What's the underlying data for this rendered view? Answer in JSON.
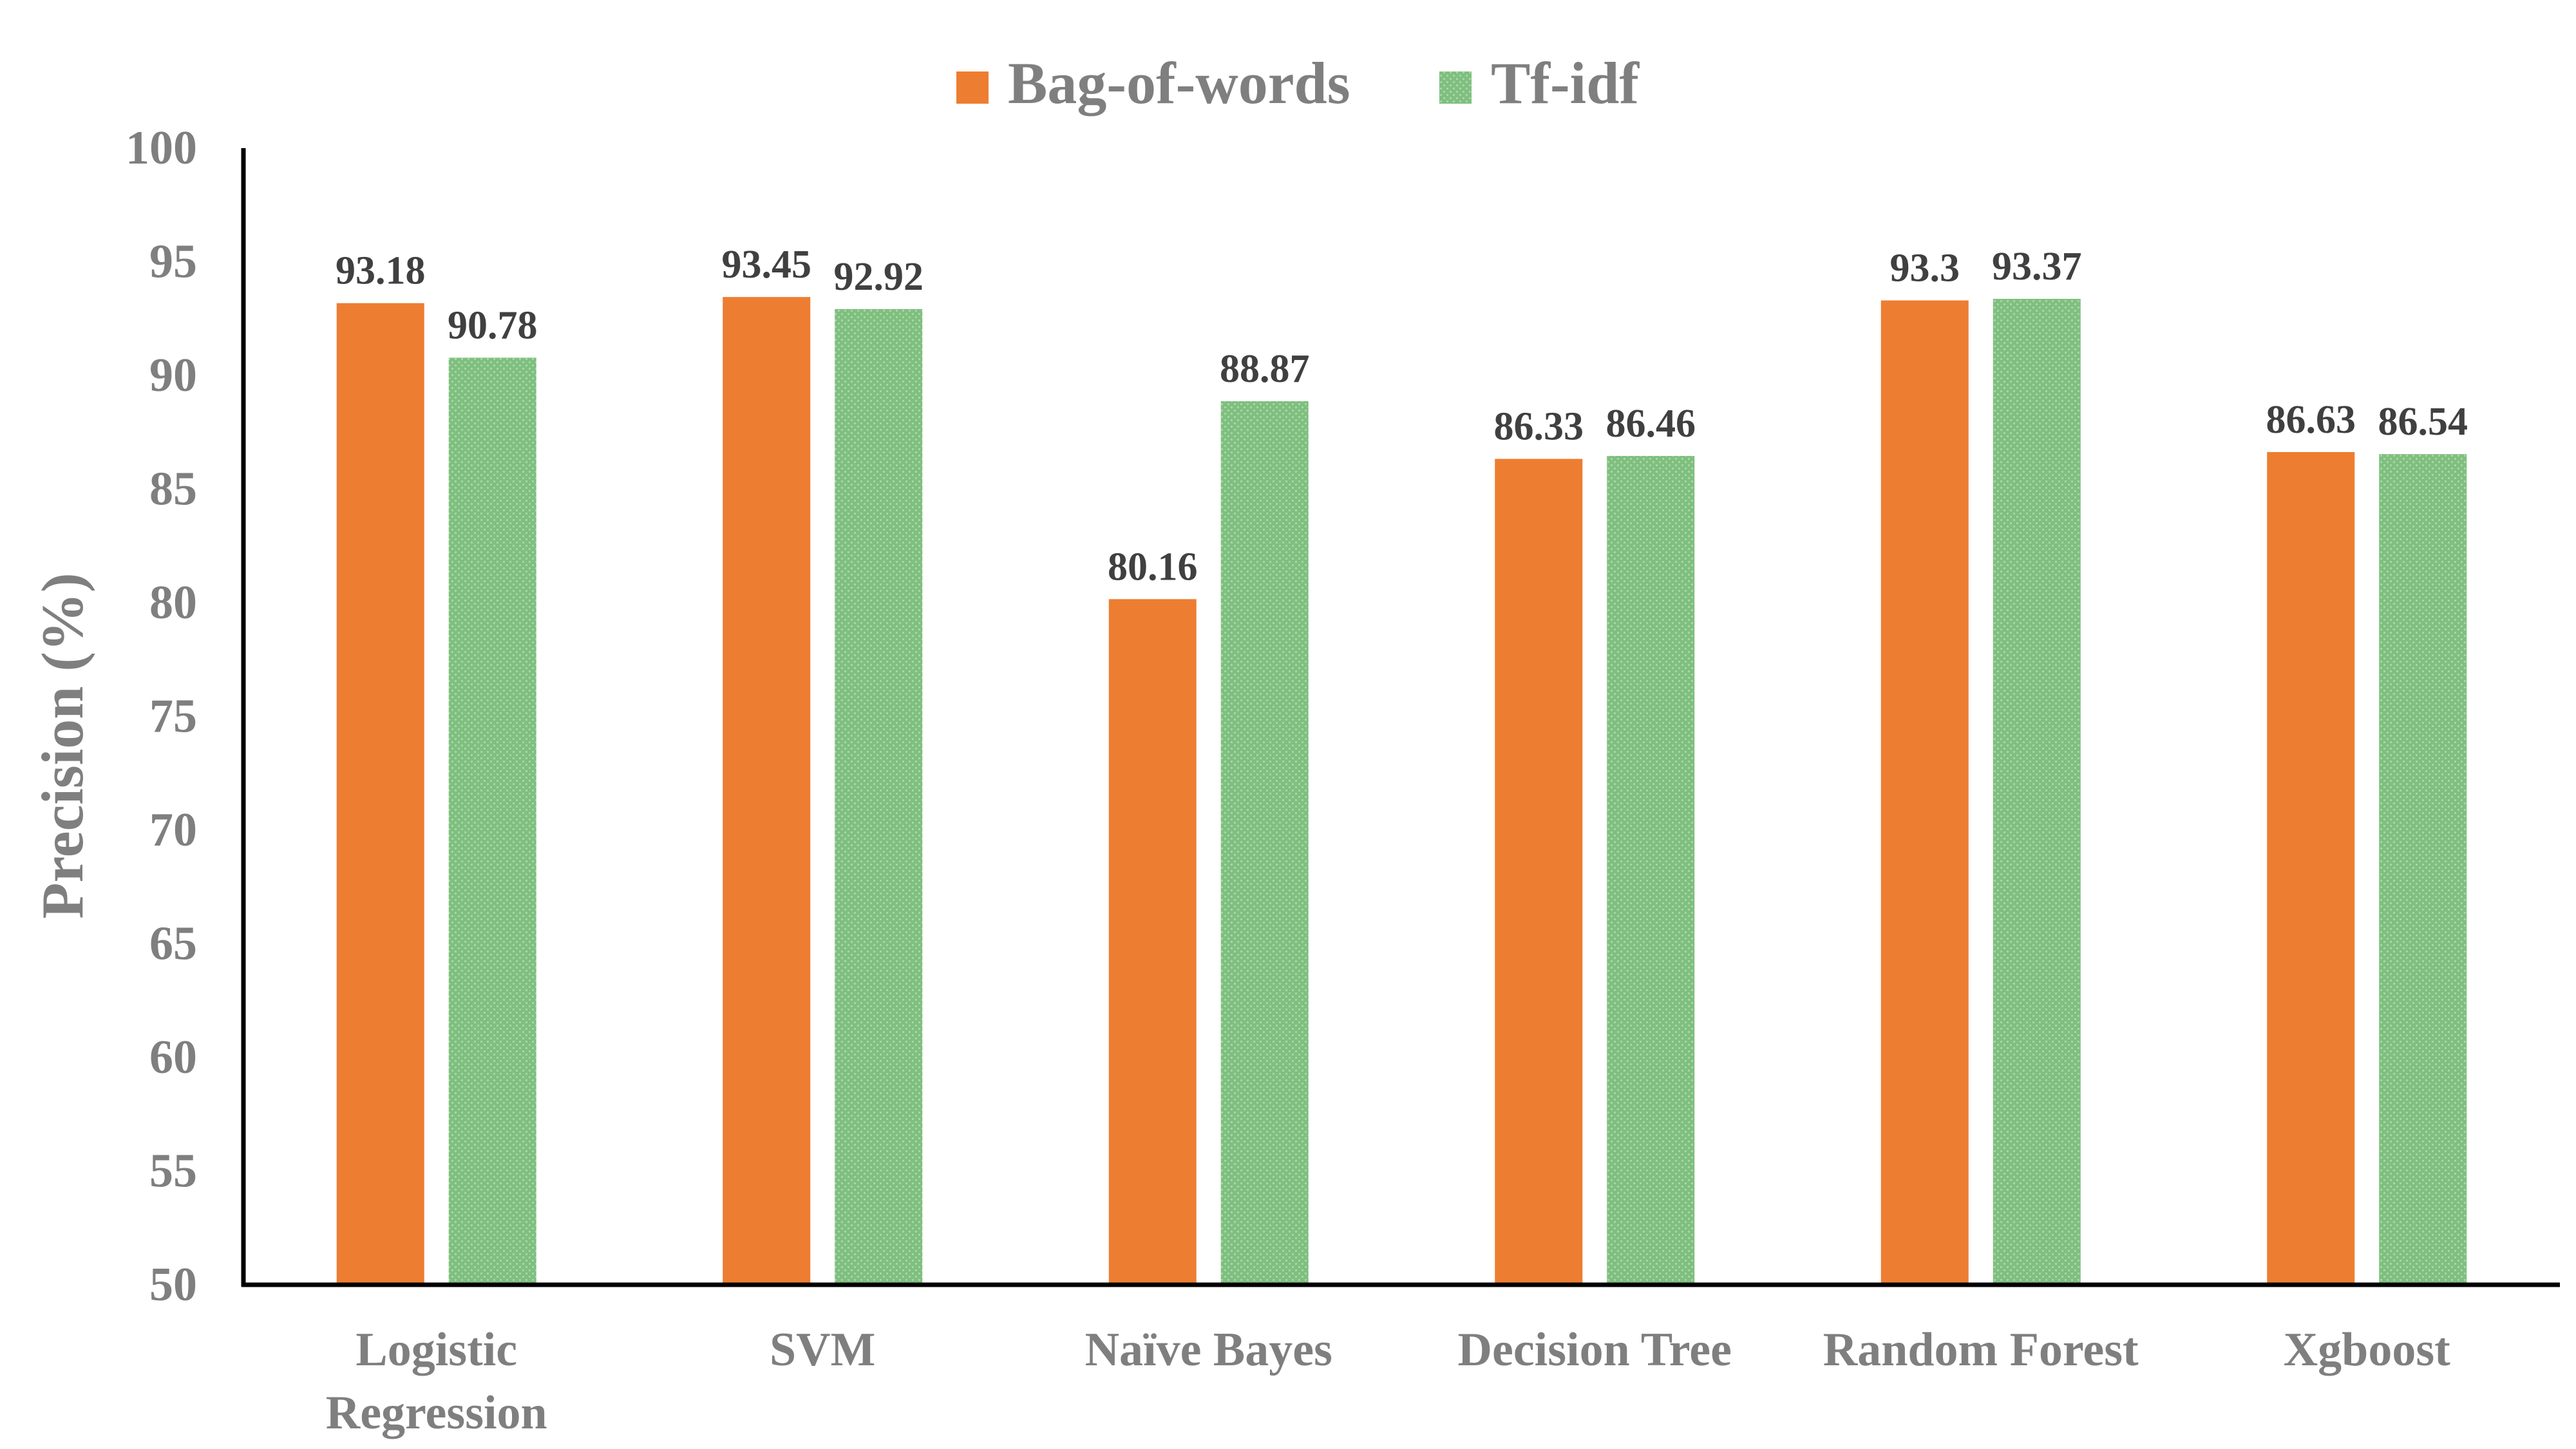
{
  "chart_data": {
    "type": "bar",
    "categories": [
      [
        "Logistic",
        "Regression"
      ],
      [
        "SVM"
      ],
      [
        "Naïve Bayes"
      ],
      [
        "Decision Tree"
      ],
      [
        "Random Forest"
      ],
      [
        "Xgboost"
      ]
    ],
    "series": [
      {
        "name": "Bag-of-words",
        "color": "#ed7d31",
        "values": [
          93.18,
          93.45,
          80.16,
          86.33,
          93.3,
          86.63
        ],
        "labels": [
          "93.18",
          "93.45",
          "80.16",
          "86.33",
          "93.3",
          "86.63"
        ]
      },
      {
        "name": "Tf-idf",
        "color": "#7fbf7f",
        "values": [
          90.78,
          92.92,
          88.87,
          86.46,
          93.37,
          86.54
        ],
        "labels": [
          "90.78",
          "92.92",
          "88.87",
          "86.46",
          "93.37",
          "86.54"
        ]
      }
    ],
    "ylabel": "Precision (%)",
    "xlabel": "",
    "ylim": [
      50,
      100
    ],
    "yticks": [
      "50",
      "55",
      "60",
      "65",
      "70",
      "75",
      "80",
      "85",
      "90",
      "95",
      "100"
    ],
    "grid": false,
    "legend": "top-center"
  }
}
